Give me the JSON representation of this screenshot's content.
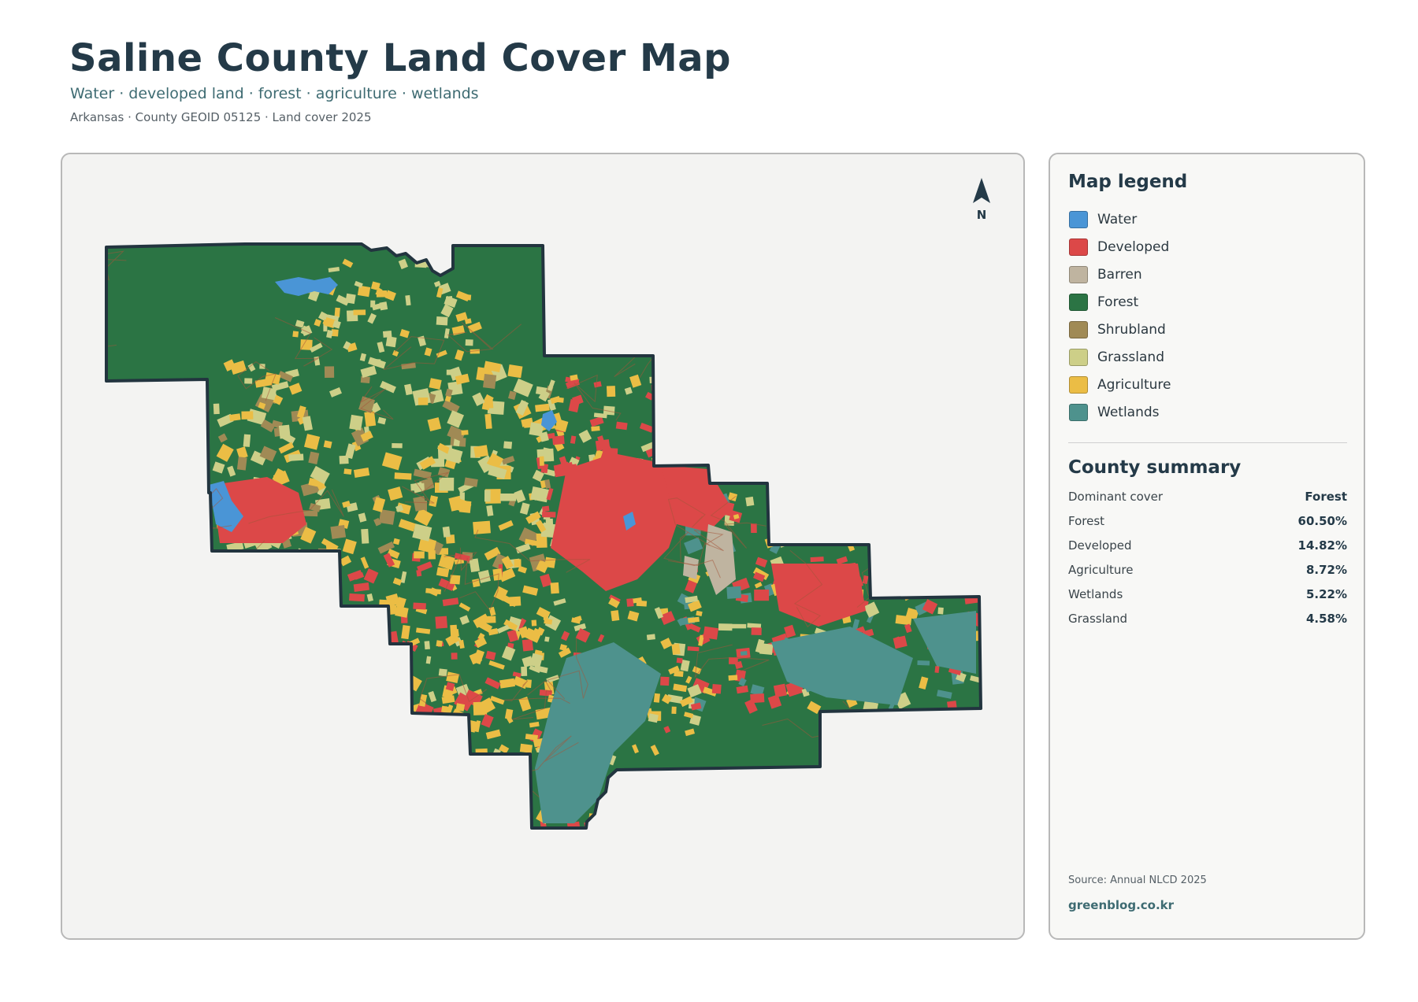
{
  "header": {
    "title": "Saline County Land Cover Map",
    "subtitle": "Water · developed land · forest · agriculture · wetlands",
    "meta": "Arkansas · County GEOID 05125 · Land cover 2025"
  },
  "map": {
    "north_label": "N",
    "colors": {
      "background": "#f3f3f2",
      "outline": "#22343f",
      "road": "#a4553a"
    }
  },
  "legend": {
    "title": "Map legend",
    "items": [
      {
        "label": "Water",
        "color": "#4a95d6"
      },
      {
        "label": "Developed",
        "color": "#dc4848"
      },
      {
        "label": "Barren",
        "color": "#bfb4a0"
      },
      {
        "label": "Forest",
        "color": "#2b7444"
      },
      {
        "label": "Shrubland",
        "color": "#a08a55"
      },
      {
        "label": "Grassland",
        "color": "#cdcf88"
      },
      {
        "label": "Agriculture",
        "color": "#ebbd45"
      },
      {
        "label": "Wetlands",
        "color": "#4e928d"
      }
    ]
  },
  "summary": {
    "title": "County summary",
    "rows": [
      {
        "label": "Dominant cover",
        "value": "Forest"
      },
      {
        "label": "Forest",
        "value": "60.50%"
      },
      {
        "label": "Developed",
        "value": "14.82%"
      },
      {
        "label": "Agriculture",
        "value": "8.72%"
      },
      {
        "label": "Wetlands",
        "value": "5.22%"
      },
      {
        "label": "Grassland",
        "value": "4.58%"
      }
    ]
  },
  "footer": {
    "source": "Source: Annual NLCD 2025",
    "site": "greenblog.co.kr"
  }
}
